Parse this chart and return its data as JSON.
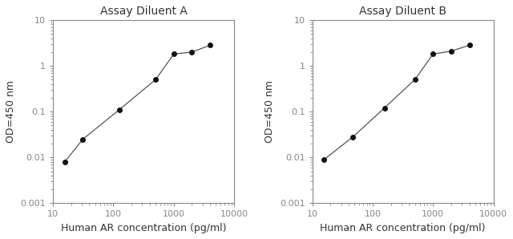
{
  "panel_A": {
    "title": "Assay Diluent A",
    "x": [
      15.6,
      31.2,
      125,
      500,
      1000,
      2000,
      4000
    ],
    "y": [
      0.008,
      0.025,
      0.11,
      0.5,
      1.8,
      2.0,
      2.8
    ]
  },
  "panel_B": {
    "title": "Assay Diluent B",
    "x": [
      15.6,
      46.875,
      156.25,
      500,
      1000,
      2000,
      4000
    ],
    "y": [
      0.009,
      0.028,
      0.12,
      0.5,
      1.8,
      2.1,
      2.8
    ]
  },
  "xlabel": "Human AR concentration (pg/ml)",
  "ylabel": "OD=450 nm",
  "xlim": [
    10,
    10000
  ],
  "ylim": [
    0.001,
    10
  ],
  "title_color": "#333333",
  "label_color": "#333333",
  "axis_color": "#888888",
  "line_color": "#555555",
  "marker_color": "#111111",
  "title_fontsize": 10,
  "label_fontsize": 9,
  "tick_fontsize": 8
}
